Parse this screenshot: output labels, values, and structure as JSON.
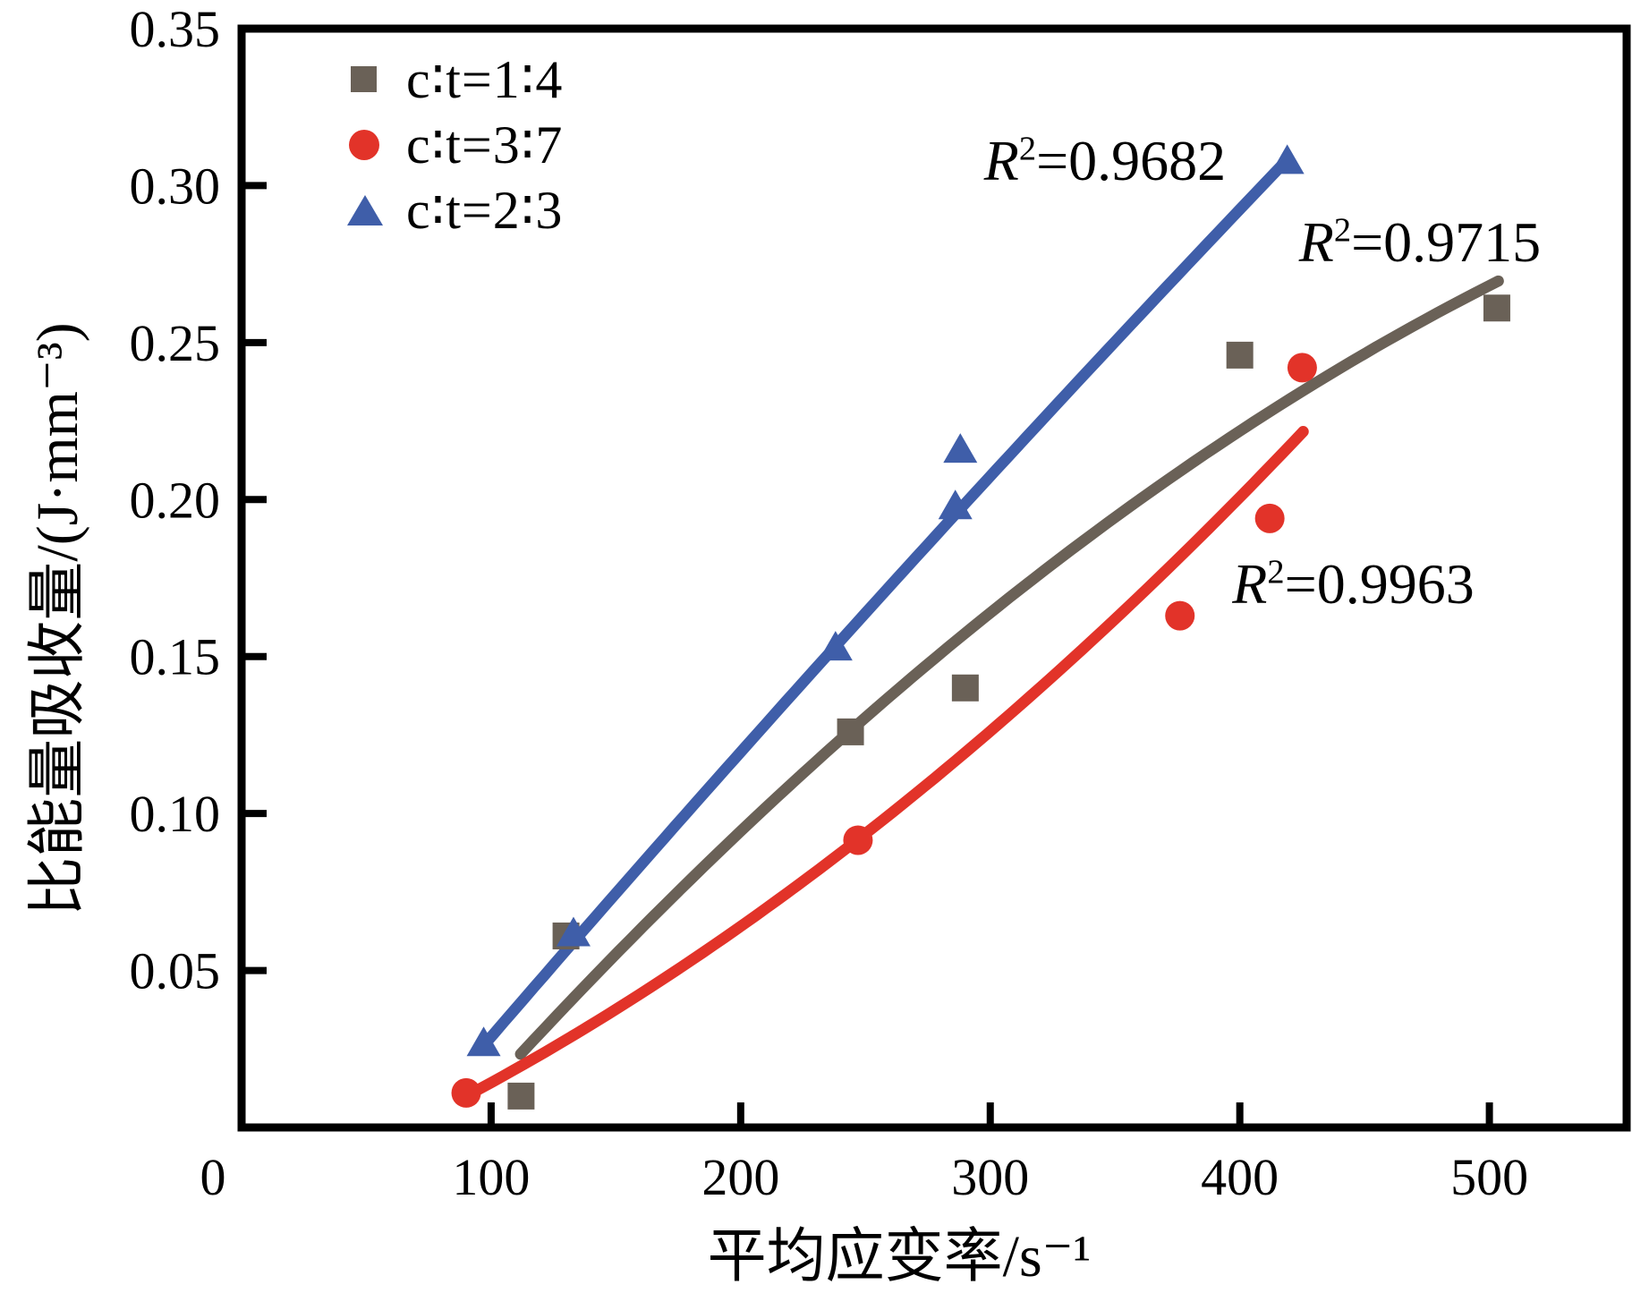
{
  "figure": {
    "x_label": "平均应变率/s⁻¹",
    "y_label": "比能量吸收量/(J·mm⁻³)"
  },
  "legend": {
    "items": [
      {
        "label": "c∶t=1∶4",
        "marker": "square",
        "color": "#6A6157"
      },
      {
        "label": "c∶t=3∶7",
        "marker": "circle",
        "color": "#E23329"
      },
      {
        "label": "c∶t=2∶3",
        "marker": "triangle",
        "color": "#3F5EA9"
      }
    ]
  },
  "annotations": [
    {
      "r": "R",
      "sup": "2",
      "eq": "=0.9682",
      "series": "c∶t=2∶3",
      "anchor_x": 297.5,
      "anchor_y": 0.3078
    },
    {
      "r": "R",
      "sup": "2",
      "eq": "=0.9715",
      "series": "c∶t=1∶4",
      "anchor_x": 423.7,
      "anchor_y": 0.2819
    },
    {
      "r": "R",
      "sup": "2",
      "eq": "=0.9963",
      "series": "c∶t=3∶7",
      "anchor_x": 397.0,
      "anchor_y": 0.173
    }
  ],
  "chart_data": {
    "type": "scatter",
    "title": "",
    "xlabel": "平均应变率/s⁻¹",
    "ylabel": "比能量吸收量/(J·mm⁻³)",
    "xlim": [
      0,
      555
    ],
    "ylim": [
      0,
      0.35
    ],
    "xticks": [
      0,
      100,
      200,
      300,
      400,
      500
    ],
    "xtick_labels": [
      "0",
      "100",
      "200",
      "300",
      "400",
      "500"
    ],
    "yticks": [
      0.05,
      0.1,
      0.15,
      0.2,
      0.25,
      0.3,
      0.35
    ],
    "ytick_labels": [
      "0.05",
      "0.10",
      "0.15",
      "0.20",
      "0.25",
      "0.30",
      "0.35"
    ],
    "grid": false,
    "legend_position": "top-left-inside",
    "series": [
      {
        "name": "c∶t=1∶4",
        "marker": "square",
        "color": "#6A6157",
        "r_squared": 0.9715,
        "points": [
          [
            112,
            0.01
          ],
          [
            130,
            0.061
          ],
          [
            244,
            0.126
          ],
          [
            290,
            0.14
          ],
          [
            400,
            0.246
          ],
          [
            503,
            0.261
          ]
        ],
        "fit": {
          "type": "quadratic",
          "a": -0.0796,
          "b": 0.000986,
          "c": -5.81e-07,
          "x_range": [
            111.8,
            503.6
          ]
        }
      },
      {
        "name": "c∶t=3∶7",
        "marker": "circle",
        "color": "#E23329",
        "r_squared": 0.9963,
        "points": [
          [
            90,
            0.011
          ],
          [
            247,
            0.0915
          ],
          [
            376,
            0.163
          ],
          [
            412,
            0.194
          ],
          [
            425,
            0.242
          ]
        ],
        "fit": {
          "type": "quadratic",
          "a": -0.0231,
          "b": 0.000312,
          "c": 6.19e-07,
          "x_range": [
            87.8,
            425.4
          ]
        }
      },
      {
        "name": "c∶t=2∶3",
        "marker": "triangle",
        "color": "#3F5EA9",
        "r_squared": 0.9682,
        "points": [
          [
            97,
            0.027
          ],
          [
            133,
            0.062
          ],
          [
            238,
            0.153
          ],
          [
            286,
            0.198
          ],
          [
            288,
            0.216
          ],
          [
            419,
            0.308
          ]
        ],
        "fit": {
          "type": "quadratic",
          "a": -0.0647,
          "b": 0.00095,
          "c": -1.43e-07,
          "x_range": [
            97.1,
            419.4
          ]
        }
      }
    ]
  }
}
